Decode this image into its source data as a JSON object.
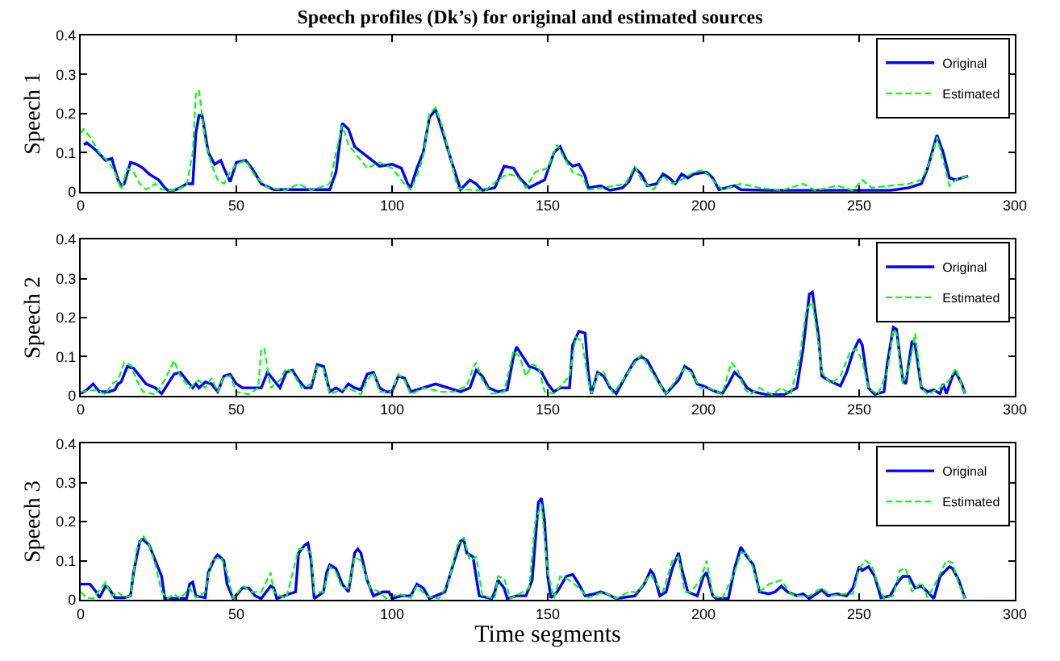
{
  "chart_data": [
    {
      "type": "line",
      "title": "Speech profiles (Dk’s) for original and estimated sources",
      "ylabel": "Speech 1",
      "xlim": [
        0,
        300
      ],
      "xticks": [
        0,
        50,
        100,
        150,
        200,
        250,
        300
      ],
      "ylim": [
        0,
        0.4
      ],
      "yticks": [
        0,
        0.1,
        0.2,
        0.3,
        0.4
      ],
      "legend": "top right",
      "grid": false,
      "marker": "none",
      "series": [
        {
          "name": "Original",
          "color": "#0000ff",
          "line_style": "solid",
          "x": [
            1,
            2,
            5,
            8,
            10,
            12,
            13,
            14,
            16,
            18,
            20,
            22,
            25,
            27,
            28,
            30,
            32,
            34,
            36,
            37,
            38,
            39,
            41,
            43,
            45,
            46,
            48,
            50,
            53,
            55,
            58,
            62,
            70,
            80,
            82,
            84,
            86,
            88,
            92,
            96,
            100,
            103,
            105,
            106,
            108,
            110,
            112,
            114,
            116,
            119,
            121,
            122,
            125,
            127,
            129,
            133,
            136,
            139,
            141,
            144,
            149,
            152,
            154,
            156,
            158,
            160,
            162,
            163,
            167,
            170,
            174,
            176,
            178,
            180,
            182,
            185,
            187,
            189,
            191,
            193,
            195,
            197,
            201,
            203,
            205,
            210,
            212,
            220,
            230,
            240,
            250,
            260,
            266,
            270,
            272,
            275,
            277,
            279,
            281,
            283,
            285
          ],
          "values": [
            0.12,
            0.125,
            0.105,
            0.08,
            0.085,
            0.03,
            0.015,
            0.02,
            0.075,
            0.07,
            0.06,
            0.045,
            0.03,
            0.01,
            0.003,
            0.003,
            0.01,
            0.02,
            0.02,
            0.15,
            0.195,
            0.195,
            0.1,
            0.07,
            0.08,
            0.06,
            0.025,
            0.075,
            0.08,
            0.06,
            0.02,
            0.005,
            0.005,
            0.005,
            0.05,
            0.175,
            0.16,
            0.115,
            0.09,
            0.065,
            0.07,
            0.06,
            0.02,
            0.01,
            0.06,
            0.1,
            0.19,
            0.21,
            0.16,
            0.08,
            0.03,
            0.005,
            0.03,
            0.02,
            0.003,
            0.01,
            0.065,
            0.06,
            0.035,
            0.01,
            0.03,
            0.1,
            0.115,
            0.08,
            0.065,
            0.07,
            0.04,
            0.01,
            0.015,
            0.003,
            0.01,
            0.025,
            0.06,
            0.045,
            0.015,
            0.02,
            0.045,
            0.035,
            0.02,
            0.045,
            0.035,
            0.045,
            0.05,
            0.035,
            0.005,
            0.015,
            0.005,
            0.003,
            0.003,
            0.003,
            0.003,
            0.003,
            0.01,
            0.02,
            0.06,
            0.145,
            0.1,
            0.035,
            0.03,
            0.035,
            0.04
          ]
        },
        {
          "name": "Estimated",
          "color": "#00ff00",
          "line_style": "dashed",
          "x": [
            0,
            1,
            3,
            6,
            9,
            11,
            13,
            15,
            17,
            19,
            21,
            24,
            26,
            30,
            34,
            36,
            37,
            38,
            40,
            42,
            44,
            46,
            48,
            50,
            53,
            56,
            60,
            66,
            70,
            74,
            80,
            82,
            84,
            86,
            88,
            92,
            96,
            100,
            104,
            106,
            108,
            110,
            112,
            114,
            116,
            119,
            121,
            124,
            130,
            134,
            137,
            140,
            143,
            146,
            148,
            150,
            153,
            155,
            158,
            161,
            163,
            168,
            175,
            178,
            180,
            184,
            187,
            190,
            194,
            197,
            200,
            203,
            206,
            212,
            218,
            225,
            232,
            236,
            243,
            248,
            251,
            254,
            260,
            266,
            270,
            273,
            275,
            277,
            279,
            281,
            285
          ],
          "values": [
            0.15,
            0.16,
            0.14,
            0.1,
            0.075,
            0.05,
            0.005,
            0.06,
            0.05,
            0.02,
            0.005,
            0.02,
            0.005,
            0.003,
            0.015,
            0.1,
            0.25,
            0.26,
            0.13,
            0.07,
            0.03,
            0.02,
            0.05,
            0.07,
            0.08,
            0.04,
            0.01,
            0.003,
            0.02,
            0.003,
            0.02,
            0.1,
            0.17,
            0.12,
            0.1,
            0.06,
            0.075,
            0.06,
            0.02,
            0.005,
            0.04,
            0.09,
            0.2,
            0.215,
            0.17,
            0.08,
            0.01,
            0.005,
            0.003,
            0.03,
            0.045,
            0.04,
            0.01,
            0.05,
            0.055,
            0.06,
            0.12,
            0.09,
            0.05,
            0.04,
            0.005,
            0.01,
            0.02,
            0.065,
            0.03,
            0.005,
            0.04,
            0.02,
            0.035,
            0.05,
            0.055,
            0.03,
            0.005,
            0.02,
            0.01,
            0.003,
            0.02,
            0.003,
            0.015,
            0.003,
            0.03,
            0.01,
            0.015,
            0.02,
            0.03,
            0.08,
            0.14,
            0.08,
            0.015,
            0.03,
            0.04
          ]
        }
      ]
    },
    {
      "type": "line",
      "ylabel": "Speech 2",
      "xlim": [
        0,
        300
      ],
      "xticks": [
        0,
        50,
        100,
        150,
        200,
        250,
        300
      ],
      "ylim": [
        0,
        0.4
      ],
      "yticks": [
        0,
        0.1,
        0.2,
        0.3,
        0.4
      ],
      "legend": "top right",
      "grid": false,
      "marker": "none",
      "series": [
        {
          "name": "Original",
          "color": "#0000ff",
          "line_style": "solid",
          "x": [
            0,
            2,
            4,
            6,
            9,
            11,
            12,
            13,
            15,
            17,
            19,
            21,
            24,
            26,
            28,
            30,
            32,
            34,
            36,
            37,
            38,
            40,
            42,
            44,
            46,
            48,
            50,
            52,
            54,
            58,
            60,
            62,
            64,
            66,
            68,
            70,
            72,
            74,
            76,
            78,
            80,
            82,
            84,
            86,
            88,
            90,
            92,
            94,
            96,
            98,
            100,
            102,
            104,
            106,
            110,
            114,
            118,
            122,
            125,
            127,
            129,
            131,
            134,
            137,
            139,
            140,
            142,
            144,
            146,
            148,
            150,
            152,
            154,
            157,
            158,
            160,
            162,
            163,
            164,
            166,
            168,
            170,
            172,
            175,
            178,
            180,
            182,
            184,
            186,
            188,
            192,
            194,
            196,
            198,
            200,
            204,
            206,
            208,
            210,
            212,
            214,
            216,
            220,
            226,
            230,
            232,
            234,
            235,
            237,
            238,
            240,
            244,
            246,
            248,
            250,
            251,
            253,
            255,
            258,
            259,
            261,
            262,
            264,
            265,
            267,
            268,
            270,
            272,
            274,
            276,
            277,
            278,
            280,
            281,
            283,
            284
          ],
          "values": [
            0.005,
            0.015,
            0.03,
            0.01,
            0.01,
            0.015,
            0.03,
            0.035,
            0.075,
            0.07,
            0.05,
            0.03,
            0.02,
            0.005,
            0.03,
            0.055,
            0.06,
            0.04,
            0.02,
            0.03,
            0.02,
            0.035,
            0.03,
            0.01,
            0.05,
            0.055,
            0.03,
            0.02,
            0.02,
            0.02,
            0.06,
            0.04,
            0.02,
            0.06,
            0.065,
            0.04,
            0.02,
            0.02,
            0.08,
            0.075,
            0.01,
            0.02,
            0.01,
            0.03,
            0.02,
            0.015,
            0.055,
            0.06,
            0.02,
            0.01,
            0.01,
            0.05,
            0.045,
            0.01,
            0.02,
            0.03,
            0.02,
            0.01,
            0.02,
            0.065,
            0.05,
            0.02,
            0.01,
            0.015,
            0.1,
            0.125,
            0.1,
            0.075,
            0.07,
            0.06,
            0.03,
            0.01,
            0.02,
            0.02,
            0.13,
            0.165,
            0.16,
            0.06,
            0.005,
            0.06,
            0.05,
            0.02,
            0.005,
            0.05,
            0.09,
            0.1,
            0.09,
            0.06,
            0.03,
            0.005,
            0.04,
            0.075,
            0.065,
            0.03,
            0.025,
            0.01,
            0.005,
            0.03,
            0.06,
            0.045,
            0.02,
            0.01,
            0.003,
            0.003,
            0.02,
            0.12,
            0.26,
            0.265,
            0.15,
            0.05,
            0.04,
            0.025,
            0.06,
            0.11,
            0.145,
            0.13,
            0.02,
            0.003,
            0.01,
            0.08,
            0.175,
            0.17,
            0.04,
            0.03,
            0.14,
            0.13,
            0.02,
            0.01,
            0.015,
            0.005,
            0.03,
            0.005,
            0.05,
            0.06,
            0.03,
            0.005
          ]
        },
        {
          "name": "Estimated",
          "color": "#00ff00",
          "line_style": "dashed",
          "x": [
            0,
            5,
            8,
            10,
            12,
            14,
            16,
            18,
            20,
            24,
            27,
            30,
            32,
            35,
            38,
            40,
            42,
            44,
            46,
            48,
            50,
            54,
            57,
            58,
            59,
            61,
            64,
            66,
            68,
            71,
            74,
            76,
            78,
            80,
            82,
            86,
            90,
            92,
            94,
            96,
            100,
            102,
            104,
            106,
            110,
            116,
            120,
            124,
            126,
            127,
            129,
            132,
            136,
            139,
            141,
            143,
            145,
            147,
            149,
            152,
            157,
            159,
            161,
            163,
            164,
            166,
            168,
            171,
            175,
            178,
            180,
            182,
            185,
            188,
            192,
            194,
            196,
            199,
            202,
            206,
            209,
            211,
            213,
            215,
            218,
            222,
            225,
            228,
            231,
            233,
            235,
            237,
            238,
            241,
            244,
            247,
            249,
            251,
            253,
            256,
            259,
            261,
            262,
            264,
            266,
            268,
            270,
            272,
            276,
            279,
            281,
            284
          ],
          "values": [
            0.01,
            0.015,
            0.003,
            0.03,
            0.04,
            0.085,
            0.08,
            0.04,
            0.01,
            0.003,
            0.04,
            0.09,
            0.05,
            0.02,
            0.04,
            0.02,
            0.045,
            0.01,
            0.05,
            0.05,
            0.01,
            0.003,
            0.02,
            0.12,
            0.12,
            0.02,
            0.04,
            0.07,
            0.06,
            0.02,
            0.03,
            0.075,
            0.07,
            0.005,
            0.01,
            0.02,
            0.003,
            0.04,
            0.06,
            0.01,
            0.01,
            0.055,
            0.04,
            0.003,
            0.02,
            0.01,
            0.01,
            0.025,
            0.07,
            0.085,
            0.04,
            0.005,
            0.01,
            0.115,
            0.1,
            0.05,
            0.08,
            0.075,
            0.01,
            0.005,
            0.05,
            0.15,
            0.14,
            0.04,
            0.005,
            0.055,
            0.06,
            0.005,
            0.05,
            0.085,
            0.105,
            0.08,
            0.04,
            0.005,
            0.05,
            0.07,
            0.06,
            0.02,
            0.02,
            0.003,
            0.085,
            0.065,
            0.02,
            0.003,
            0.02,
            0.003,
            0.02,
            0.003,
            0.1,
            0.22,
            0.24,
            0.13,
            0.06,
            0.03,
            0.05,
            0.11,
            0.12,
            0.09,
            0.02,
            0.003,
            0.06,
            0.17,
            0.16,
            0.03,
            0.07,
            0.16,
            0.02,
            0.003,
            0.02,
            0.04,
            0.07,
            0.005
          ]
        }
      ]
    },
    {
      "type": "line",
      "ylabel": "Speech 3",
      "xlabel": "Time segments",
      "xlim": [
        0,
        300
      ],
      "xticks": [
        0,
        50,
        100,
        150,
        200,
        250,
        300
      ],
      "ylim": [
        0,
        0.4
      ],
      "yticks": [
        0,
        0.1,
        0.2,
        0.3,
        0.4
      ],
      "legend": "top right",
      "grid": false,
      "marker": "none",
      "series": [
        {
          "name": "Original",
          "color": "#0000ff",
          "line_style": "solid",
          "x": [
            0,
            3,
            5,
            6,
            8,
            9,
            11,
            14,
            16,
            17,
            19,
            20,
            22,
            24,
            26,
            27,
            30,
            34,
            35,
            36,
            37,
            40,
            41,
            43,
            44,
            46,
            47,
            49,
            52,
            54,
            56,
            58,
            61,
            62,
            63,
            67,
            69,
            70,
            72,
            73,
            74,
            75,
            78,
            79,
            80,
            82,
            84,
            86,
            88,
            89,
            90,
            92,
            94,
            97,
            99,
            100,
            103,
            106,
            108,
            110,
            112,
            117,
            120,
            122,
            123,
            124,
            126,
            128,
            132,
            133,
            134,
            136,
            137,
            140,
            143,
            145,
            147,
            148,
            149,
            150,
            151,
            153,
            156,
            158,
            160,
            162,
            165,
            167,
            169,
            172,
            178,
            181,
            183,
            184,
            186,
            188,
            190,
            192,
            193,
            195,
            198,
            200,
            201,
            203,
            204,
            208,
            210,
            212,
            214,
            216,
            218,
            221,
            223,
            225,
            227,
            230,
            232,
            234,
            238,
            240,
            243,
            246,
            248,
            250,
            251,
            253,
            255,
            257,
            260,
            262,
            264,
            266,
            268,
            270,
            272,
            274,
            276,
            279,
            280,
            282,
            284
          ],
          "values": [
            0.04,
            0.04,
            0.02,
            0.005,
            0.035,
            0.03,
            0.005,
            0.005,
            0.01,
            0.07,
            0.15,
            0.155,
            0.14,
            0.1,
            0.06,
            0.003,
            0.003,
            0.003,
            0.04,
            0.045,
            0.01,
            0.005,
            0.07,
            0.105,
            0.115,
            0.1,
            0.04,
            0.003,
            0.03,
            0.03,
            0.01,
            0.003,
            0.035,
            0.03,
            0.003,
            0.015,
            0.02,
            0.12,
            0.14,
            0.145,
            0.1,
            0.003,
            0.02,
            0.07,
            0.09,
            0.08,
            0.04,
            0.02,
            0.12,
            0.13,
            0.12,
            0.05,
            0.01,
            0.02,
            0.02,
            0.003,
            0.01,
            0.01,
            0.04,
            0.03,
            0.003,
            0.02,
            0.1,
            0.15,
            0.155,
            0.12,
            0.11,
            0.01,
            0.003,
            0.02,
            0.05,
            0.03,
            0.003,
            0.01,
            0.01,
            0.05,
            0.25,
            0.26,
            0.2,
            0.06,
            0.005,
            0.02,
            0.06,
            0.065,
            0.04,
            0.01,
            0.015,
            0.02,
            0.015,
            0.003,
            0.01,
            0.04,
            0.075,
            0.065,
            0.01,
            0.02,
            0.08,
            0.12,
            0.08,
            0.02,
            0.01,
            0.06,
            0.07,
            0.01,
            0.003,
            0.003,
            0.08,
            0.135,
            0.11,
            0.09,
            0.02,
            0.015,
            0.02,
            0.035,
            0.02,
            0.01,
            0.015,
            0.003,
            0.025,
            0.01,
            0.015,
            0.01,
            0.03,
            0.085,
            0.075,
            0.085,
            0.06,
            0.005,
            0.01,
            0.04,
            0.06,
            0.06,
            0.03,
            0.035,
            0.02,
            0.003,
            0.06,
            0.085,
            0.08,
            0.05,
            0.003
          ]
        },
        {
          "name": "Estimated",
          "color": "#00ff00",
          "line_style": "dashed",
          "x": [
            0,
            2,
            4,
            8,
            10,
            12,
            14,
            16,
            18,
            20,
            22,
            24,
            26,
            28,
            30,
            32,
            35,
            37,
            40,
            42,
            45,
            47,
            49,
            52,
            55,
            58,
            61,
            62,
            66,
            70,
            72,
            74,
            75,
            78,
            80,
            82,
            84,
            86,
            88,
            90,
            93,
            96,
            98,
            102,
            106,
            108,
            111,
            115,
            118,
            121,
            123,
            125,
            127,
            129,
            133,
            134,
            136,
            138,
            142,
            144,
            146,
            148,
            150,
            152,
            154,
            157,
            160,
            163,
            168,
            172,
            176,
            179,
            183,
            185,
            187,
            190,
            192,
            194,
            196,
            199,
            201,
            203,
            206,
            210,
            212,
            214,
            216,
            218,
            221,
            223,
            225,
            228,
            230,
            234,
            238,
            241,
            245,
            248,
            250,
            252,
            254,
            256,
            258,
            261,
            263,
            265,
            267,
            270,
            272,
            275,
            278,
            280,
            282,
            284
          ],
          "values": [
            0.02,
            0.005,
            0.003,
            0.045,
            0.01,
            0.02,
            0.005,
            0.01,
            0.13,
            0.165,
            0.14,
            0.09,
            0.02,
            0.003,
            0.015,
            0.003,
            0.03,
            0.005,
            0.02,
            0.1,
            0.11,
            0.07,
            0.003,
            0.035,
            0.02,
            0.02,
            0.07,
            0.02,
            0.003,
            0.13,
            0.13,
            0.12,
            0.02,
            0.02,
            0.085,
            0.07,
            0.03,
            0.03,
            0.11,
            0.1,
            0.03,
            0.02,
            0.003,
            0.015,
            0.005,
            0.035,
            0.01,
            0.003,
            0.04,
            0.14,
            0.16,
            0.1,
            0.11,
            0.01,
            0.003,
            0.06,
            0.055,
            0.003,
            0.02,
            0.03,
            0.2,
            0.245,
            0.07,
            0.003,
            0.06,
            0.05,
            0.03,
            0.005,
            0.02,
            0.003,
            0.02,
            0.02,
            0.065,
            0.04,
            0.02,
            0.1,
            0.11,
            0.02,
            0.02,
            0.05,
            0.1,
            0.01,
            0.003,
            0.07,
            0.12,
            0.12,
            0.08,
            0.02,
            0.04,
            0.045,
            0.05,
            0.015,
            0.01,
            0.01,
            0.03,
            0.01,
            0.015,
            0.015,
            0.08,
            0.1,
            0.09,
            0.04,
            0.003,
            0.01,
            0.075,
            0.08,
            0.02,
            0.045,
            0.005,
            0.05,
            0.1,
            0.095,
            0.04,
            0.003
          ]
        }
      ]
    }
  ]
}
